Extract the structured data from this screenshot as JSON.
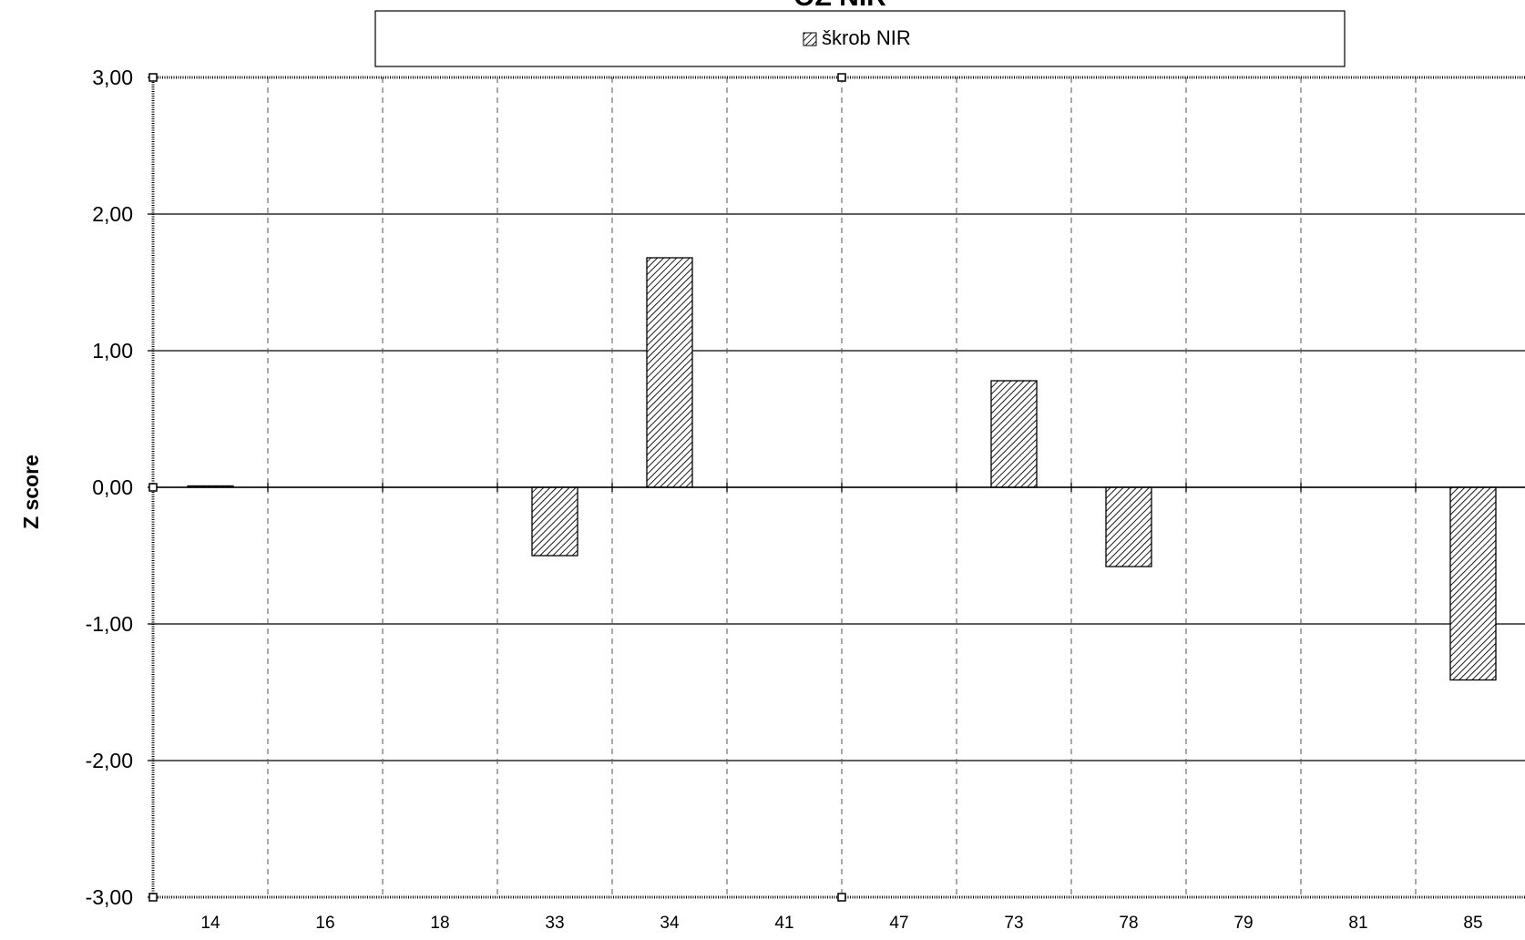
{
  "chart_data": {
    "type": "bar",
    "title": "OZ NIR",
    "ylabel": "Z score",
    "xlabel": "",
    "categories": [
      "14",
      "16",
      "18",
      "33",
      "34",
      "41",
      "47",
      "73",
      "78",
      "79",
      "81",
      "85"
    ],
    "series": [
      {
        "name": "škrob NIR",
        "values": [
          0.01,
          null,
          null,
          -0.5,
          1.68,
          null,
          null,
          0.78,
          -0.58,
          null,
          null,
          -1.41
        ]
      }
    ],
    "ylim": [
      -3,
      3
    ],
    "yticks": [
      "3,00",
      "2,00",
      "1,00",
      "0,00",
      "-1,00",
      "-2,00",
      "-3,00"
    ],
    "ytick_values": [
      3,
      2,
      1,
      0,
      -1,
      -2,
      -3
    ],
    "grid": "horizontal solid, vertical dashed",
    "legend_position": "top",
    "bar_pattern": "diagonal-hatch"
  }
}
